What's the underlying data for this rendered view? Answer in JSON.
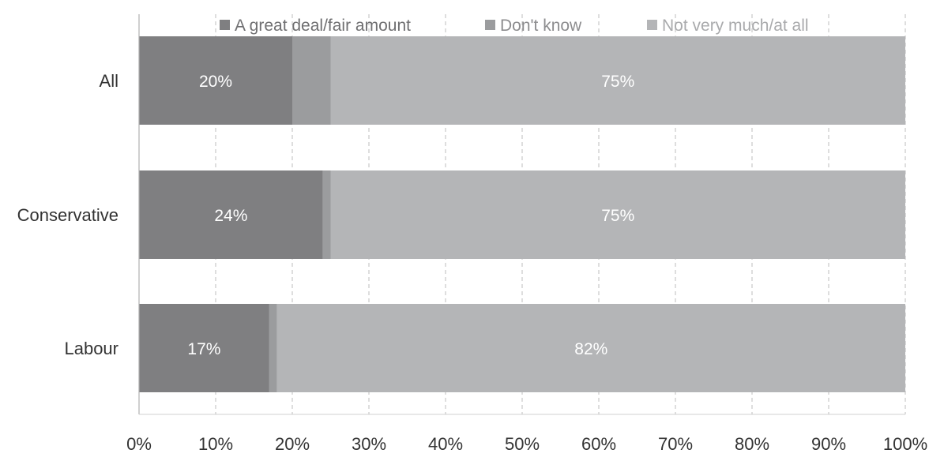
{
  "chart_data": {
    "type": "bar",
    "orientation": "horizontal",
    "stacked": true,
    "categories": [
      "All",
      "Conservative",
      "Labour"
    ],
    "series": [
      {
        "name": "A great deal/fair amount",
        "values": [
          20,
          24,
          17
        ],
        "labels": [
          "20%",
          "24%",
          "17%"
        ],
        "color": "#7f7f81"
      },
      {
        "name": "Don't know",
        "values": [
          5,
          1,
          1
        ],
        "labels": [
          "",
          "",
          ""
        ],
        "color": "#9b9c9e"
      },
      {
        "name": "Not very much/at all",
        "values": [
          75,
          75,
          82
        ],
        "labels": [
          "75%",
          "75%",
          "82%"
        ],
        "color": "#b4b5b7"
      }
    ],
    "xlim": [
      0,
      100
    ],
    "xticks": [
      "0%",
      "10%",
      "20%",
      "30%",
      "40%",
      "50%",
      "60%",
      "70%",
      "80%",
      "90%",
      "100%"
    ],
    "grid": true,
    "legend": "top",
    "title": "",
    "xlabel": "",
    "ylabel": ""
  }
}
